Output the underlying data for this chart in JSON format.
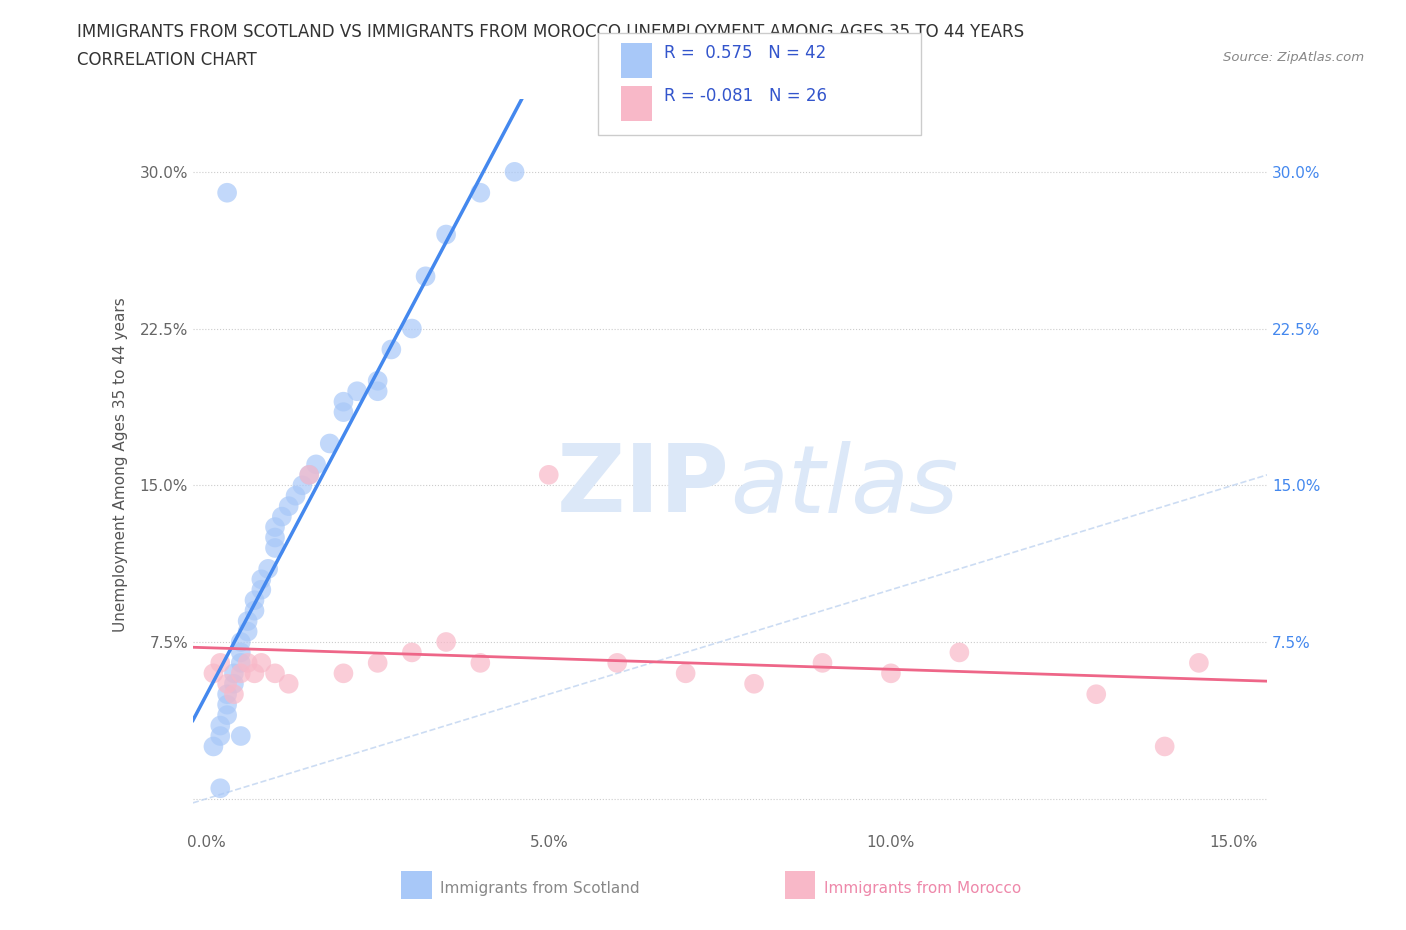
{
  "title_line1": "IMMIGRANTS FROM SCOTLAND VS IMMIGRANTS FROM MOROCCO UNEMPLOYMENT AMONG AGES 35 TO 44 YEARS",
  "title_line2": "CORRELATION CHART",
  "source_text": "Source: ZipAtlas.com",
  "ylabel": "Unemployment Among Ages 35 to 44 years",
  "scotland_R": 0.575,
  "scotland_N": 42,
  "morocco_R": -0.081,
  "morocco_N": 26,
  "scotland_color": "#a8c8f8",
  "morocco_color": "#f8b8c8",
  "scotland_line_color": "#4488ee",
  "morocco_line_color": "#ee6688",
  "diag_line_color": "#c0d4f0",
  "background_color": "#ffffff",
  "grid_color": "#cccccc",
  "watermark_color": "#dce8f8",
  "scotland_x": [
    0.001,
    0.002,
    0.002,
    0.003,
    0.003,
    0.003,
    0.004,
    0.004,
    0.005,
    0.005,
    0.005,
    0.006,
    0.006,
    0.007,
    0.007,
    0.008,
    0.008,
    0.009,
    0.01,
    0.01,
    0.01,
    0.011,
    0.012,
    0.013,
    0.014,
    0.015,
    0.016,
    0.018,
    0.02,
    0.022,
    0.025,
    0.027,
    0.03,
    0.032,
    0.035,
    0.04,
    0.045,
    0.02,
    0.025,
    0.003,
    0.005,
    0.002
  ],
  "scotland_y": [
    0.025,
    0.03,
    0.035,
    0.04,
    0.045,
    0.05,
    0.055,
    0.06,
    0.065,
    0.07,
    0.075,
    0.08,
    0.085,
    0.09,
    0.095,
    0.1,
    0.105,
    0.11,
    0.12,
    0.125,
    0.13,
    0.135,
    0.14,
    0.145,
    0.15,
    0.155,
    0.16,
    0.17,
    0.185,
    0.195,
    0.2,
    0.215,
    0.225,
    0.25,
    0.27,
    0.29,
    0.3,
    0.19,
    0.195,
    0.29,
    0.03,
    0.005
  ],
  "morocco_x": [
    0.001,
    0.002,
    0.003,
    0.004,
    0.005,
    0.006,
    0.007,
    0.008,
    0.01,
    0.012,
    0.015,
    0.02,
    0.025,
    0.03,
    0.035,
    0.04,
    0.05,
    0.06,
    0.07,
    0.08,
    0.09,
    0.1,
    0.11,
    0.13,
    0.14,
    0.145
  ],
  "morocco_y": [
    0.06,
    0.065,
    0.055,
    0.05,
    0.06,
    0.065,
    0.06,
    0.065,
    0.06,
    0.055,
    0.155,
    0.06,
    0.065,
    0.07,
    0.075,
    0.065,
    0.155,
    0.065,
    0.06,
    0.055,
    0.065,
    0.06,
    0.07,
    0.05,
    0.025,
    0.065
  ],
  "xlim": [
    -0.002,
    0.155
  ],
  "ylim": [
    -0.015,
    0.335
  ],
  "x_tick_vals": [
    0.0,
    0.05,
    0.1,
    0.15
  ],
  "x_tick_labels": [
    "0.0%",
    "5.0%",
    "10.0%",
    "15.0%"
  ],
  "y_tick_vals": [
    0.0,
    0.075,
    0.15,
    0.225,
    0.3
  ],
  "y_tick_labels": [
    "",
    "7.5%",
    "15.0%",
    "22.5%",
    "30.0%"
  ],
  "figsize": [
    14.06,
    9.3
  ],
  "dpi": 100
}
